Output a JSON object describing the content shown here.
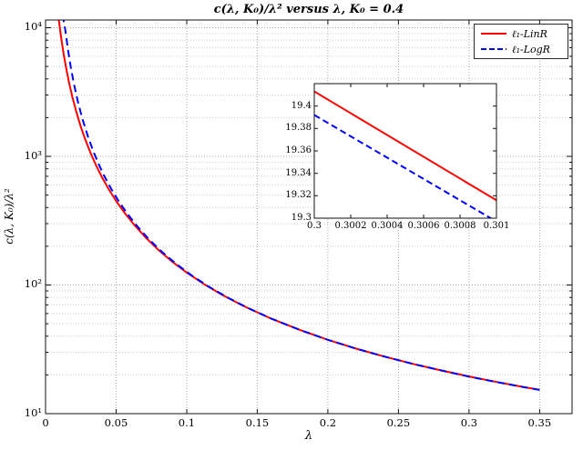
{
  "chart_data": {
    "type": "line",
    "title": "c(λ, K₀)/λ² versus λ, K₀ = 0.4",
    "xlabel": "λ",
    "ylabel": "c(λ, K₀)/λ²",
    "xlim": [
      0,
      0.373
    ],
    "ylog_range": [
      1,
      4.06
    ],
    "x_ticks": [
      0,
      0.05,
      0.1,
      0.15,
      0.2,
      0.25,
      0.3,
      0.35
    ],
    "x_tick_labels": [
      "0",
      "0.05",
      "0.1",
      "0.15",
      "0.2",
      "0.25",
      "0.3",
      "0.35"
    ],
    "y_tick_decades": [
      1,
      2,
      3,
      4
    ],
    "y_tick_labels": [
      "10¹",
      "10²",
      "10³",
      "10⁴"
    ],
    "grid": {
      "major": true,
      "minor": true
    },
    "legend_position": "top-right",
    "colors": {
      "linr": "#ff0000",
      "logr": "#0000ff",
      "grid_major": "#a8a8a8",
      "grid_minor": "#cccccc",
      "axis": "#111111"
    },
    "series": [
      {
        "name": "ℓ₁-LinR",
        "color": "#ff0000",
        "style": "solid",
        "x": [
          0.0092,
          0.01,
          0.011,
          0.012,
          0.013,
          0.015,
          0.017,
          0.019,
          0.022,
          0.025,
          0.028,
          0.032,
          0.036,
          0.04,
          0.045,
          0.05,
          0.056,
          0.063,
          0.071,
          0.08,
          0.09,
          0.1,
          0.112,
          0.125,
          0.14,
          0.16,
          0.18,
          0.2,
          0.22,
          0.24,
          0.26,
          0.28,
          0.3,
          0.32,
          0.34,
          0.35
        ],
        "y": [
          11800,
          10250,
          8492,
          7153,
          6109,
          4611,
          3607,
          2902,
          2180,
          1700,
          1365,
          1055,
          841,
          688,
          549,
          450,
          364,
          292,
          234,
          187,
          151,
          125,
          102,
          84,
          68.9,
          54.7,
          44.8,
          37.5,
          32.0,
          27.8,
          24.4,
          21.7,
          19.44,
          17.58,
          16.0,
          15.31
        ]
      },
      {
        "name": "ℓ₁-LogR",
        "color": "#0000ff",
        "style": "dashed",
        "x": [
          0.0125,
          0.013,
          0.014,
          0.016,
          0.018,
          0.02,
          0.023,
          0.026,
          0.03,
          0.034,
          0.038,
          0.042,
          0.047,
          0.052,
          0.058,
          0.065,
          0.073,
          0.082,
          0.092,
          0.103,
          0.115,
          0.13,
          0.145,
          0.16,
          0.18,
          0.2,
          0.22,
          0.24,
          0.26,
          0.28,
          0.3,
          0.32,
          0.34,
          0.35
        ],
        "y": [
          12600,
          11000,
          9578,
          6610,
          4843,
          3708,
          2638,
          1977,
          1428,
          1083,
          852,
          690,
          547,
          445,
          357,
          286,
          228,
          183,
          147.5,
          119.8,
          98.1,
          78.8,
          65.0,
          54.8,
          44.8,
          37.5,
          32.0,
          27.8,
          24.4,
          21.7,
          19.39,
          17.56,
          15.98,
          15.29
        ]
      }
    ],
    "inset": {
      "xlim": [
        0.3,
        0.301
      ],
      "ylim": [
        19.3,
        19.42
      ],
      "x_ticks": [
        0.3,
        0.3002,
        0.3004,
        0.3006,
        0.3008,
        0.301
      ],
      "x_tick_labels": [
        "0.3",
        "0.3002",
        "0.3004",
        "0.3006",
        "0.3008",
        "0.301"
      ],
      "y_ticks": [
        19.3,
        19.32,
        19.34,
        19.36,
        19.38,
        19.4
      ],
      "y_tick_labels": [
        "19.3",
        "19.32",
        "19.34",
        "19.36",
        "19.38",
        "19.4"
      ],
      "series": [
        {
          "name": "ℓ₁-LinR",
          "color": "#ff0000",
          "style": "solid",
          "x": [
            0.3,
            0.301
          ],
          "y": [
            19.413,
            19.316
          ]
        },
        {
          "name": "ℓ₁-LogR",
          "color": "#0000ff",
          "style": "dashed",
          "x": [
            0.3,
            0.301
          ],
          "y": [
            19.392,
            19.297
          ]
        }
      ]
    }
  }
}
